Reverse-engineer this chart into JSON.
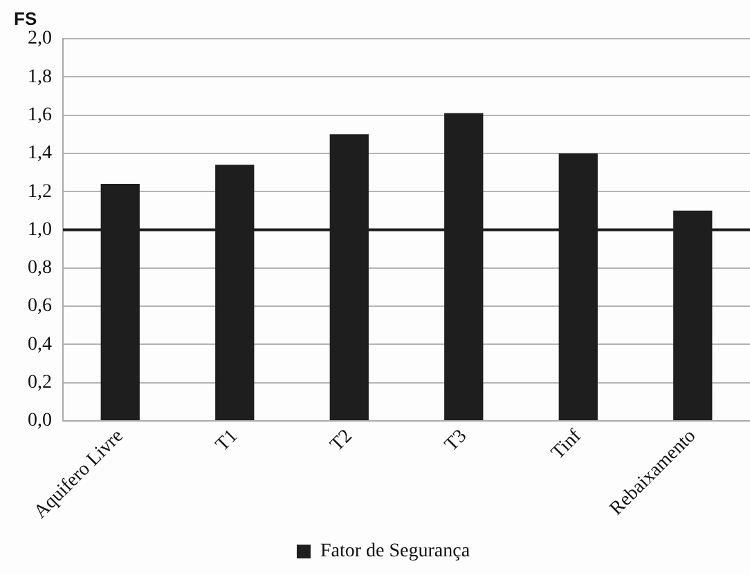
{
  "chart_data": {
    "type": "bar",
    "ylabel": "FS",
    "categories": [
      "Aquifero Livre",
      "T1",
      "T2",
      "T3",
      "Tinf",
      "Rebaixamento"
    ],
    "series": [
      {
        "name": "Fator de Segurança",
        "color": "#1e1e1e",
        "values": [
          1.24,
          1.34,
          1.5,
          1.61,
          1.4,
          1.1
        ]
      }
    ],
    "ylim": [
      0,
      2
    ],
    "yticks": [
      {
        "value": 0,
        "label": "0,0"
      },
      {
        "value": 0.2,
        "label": "0,2"
      },
      {
        "value": 0.4,
        "label": "0,4"
      },
      {
        "value": 0.6,
        "label": "0,6"
      },
      {
        "value": 0.8,
        "label": "0,8"
      },
      {
        "value": 1,
        "label": "1,0"
      },
      {
        "value": 1.2,
        "label": "1,2"
      },
      {
        "value": 1.4,
        "label": "1,4"
      },
      {
        "value": 1.6,
        "label": "1,6"
      },
      {
        "value": 1.8,
        "label": "1,8"
      },
      {
        "value": 2,
        "label": "2,0"
      }
    ],
    "ref_lines": [
      {
        "axis": "y",
        "value": 1,
        "color": "#1e1e1e"
      }
    ],
    "grid": "y",
    "legend": "bottom"
  }
}
